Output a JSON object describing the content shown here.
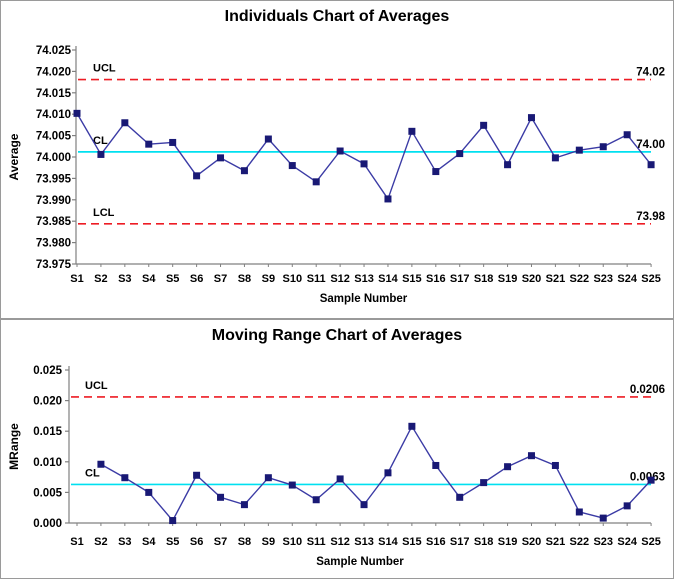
{
  "colors": {
    "series_line": "#3B3BA5",
    "marker": "#191975",
    "center_line": "#00E0F0",
    "limit_line": "#ED1C24",
    "axis": "#808080",
    "panel_border": "#9A9A9A",
    "text": "#000000"
  },
  "chart_data": [
    {
      "type": "line",
      "title": "Individuals Chart of Averages",
      "xlabel": "Sample Number",
      "ylabel": "Average",
      "categories": [
        "S1",
        "S2",
        "S3",
        "S4",
        "S5",
        "S6",
        "S7",
        "S8",
        "S9",
        "S10",
        "S11",
        "S12",
        "S13",
        "S14",
        "S15",
        "S16",
        "S17",
        "S18",
        "S19",
        "S20",
        "S21",
        "S22",
        "S23",
        "S24",
        "S25"
      ],
      "values": [
        74.0102,
        74.0006,
        74.008,
        74.003,
        74.0034,
        73.9956,
        73.9998,
        73.9968,
        74.0042,
        73.998,
        73.9942,
        74.0014,
        73.9984,
        73.9902,
        74.006,
        73.9966,
        74.0008,
        74.0074,
        73.9982,
        74.0092,
        73.9998,
        74.0016,
        74.0024,
        74.0052,
        73.9982
      ],
      "ylim": [
        73.975,
        74.025
      ],
      "ytick_step": 0.005,
      "ytick_decimals": 3,
      "grid": false,
      "legend": "none",
      "ref_lines": [
        {
          "name": "UCL",
          "value": 74.0181,
          "label": "UCL",
          "right_label": "74.02",
          "style": "dashed"
        },
        {
          "name": "CL",
          "value": 74.0012,
          "label": "CL",
          "right_label": "74.00",
          "style": "solid"
        },
        {
          "name": "LCL",
          "value": 73.9844,
          "label": "LCL",
          "right_label": "73.98",
          "style": "dashed"
        }
      ]
    },
    {
      "type": "line",
      "title": "Moving Range Chart of Averages",
      "xlabel": "Sample Number",
      "ylabel": "MRange",
      "categories": [
        "S1",
        "S2",
        "S3",
        "S4",
        "S5",
        "S6",
        "S7",
        "S8",
        "S9",
        "S10",
        "S11",
        "S12",
        "S13",
        "S14",
        "S15",
        "S16",
        "S17",
        "S18",
        "S19",
        "S20",
        "S21",
        "S22",
        "S23",
        "S24",
        "S25"
      ],
      "values": [
        null,
        0.0096,
        0.0074,
        0.005,
        0.0004,
        0.0078,
        0.0042,
        0.003,
        0.0074,
        0.0062,
        0.0038,
        0.0072,
        0.003,
        0.0082,
        0.0158,
        0.0094,
        0.0042,
        0.0066,
        0.0092,
        0.011,
        0.0094,
        0.0018,
        0.0008,
        0.0028,
        0.007
      ],
      "ylim": [
        0.0,
        0.025
      ],
      "ytick_step": 0.005,
      "ytick_decimals": 3,
      "grid": false,
      "legend": "none",
      "ref_lines": [
        {
          "name": "UCL",
          "value": 0.0206,
          "label": "UCL",
          "right_label": "0.0206",
          "style": "dashed"
        },
        {
          "name": "CL",
          "value": 0.0063,
          "label": "CL",
          "right_label": "0.0063",
          "style": "solid"
        }
      ]
    }
  ]
}
